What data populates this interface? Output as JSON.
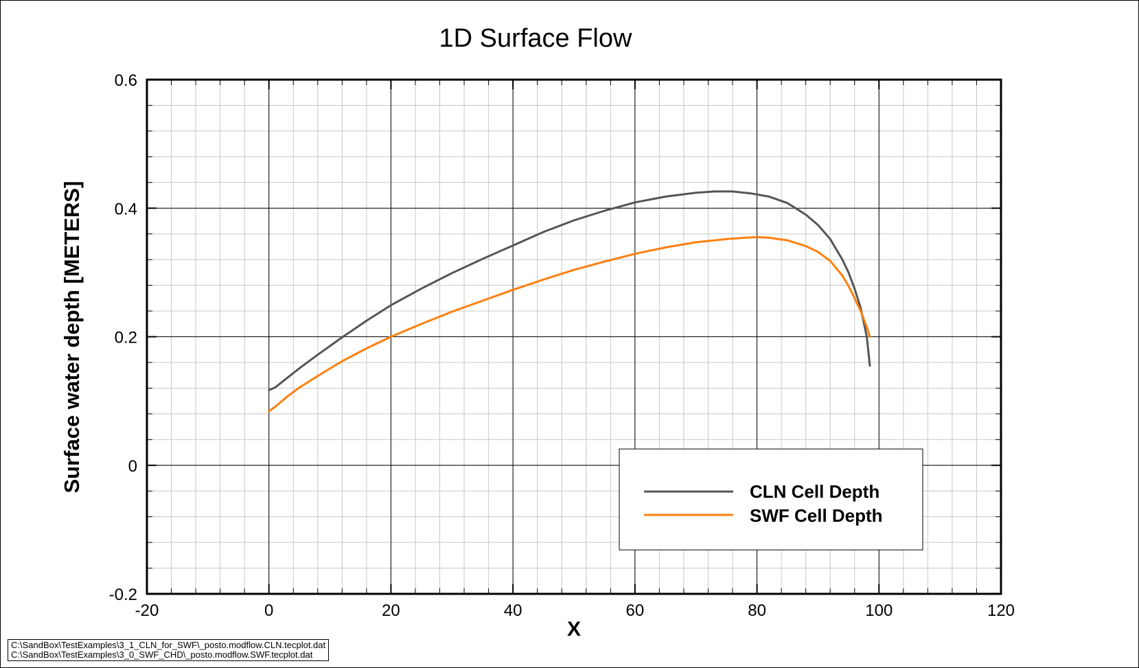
{
  "chart_data": {
    "type": "line",
    "title": "1D Surface Flow",
    "xlabel": "X",
    "ylabel": "Surface water depth [METERS]",
    "xlim": [
      -20,
      120
    ],
    "ylim": [
      -0.2,
      0.6
    ],
    "xticks": [
      "-20",
      "0",
      "20",
      "40",
      "60",
      "80",
      "100",
      "120"
    ],
    "yticks": [
      "-0.2",
      "0",
      "0.2",
      "0.4",
      "0.6"
    ],
    "grid": true,
    "legend_position": "lower-right",
    "series": [
      {
        "name": "CLN Cell Depth",
        "color": "#555555",
        "x": [
          0,
          1,
          3,
          5,
          8,
          12,
          16,
          20,
          25,
          30,
          35,
          40,
          45,
          50,
          55,
          60,
          65,
          70,
          73,
          76,
          79,
          82,
          85,
          88,
          90,
          92,
          94,
          95,
          96,
          97,
          98,
          98.5
        ],
        "y": [
          0.117,
          0.121,
          0.136,
          0.151,
          0.172,
          0.199,
          0.225,
          0.249,
          0.275,
          0.299,
          0.321,
          0.342,
          0.363,
          0.381,
          0.396,
          0.409,
          0.418,
          0.424,
          0.426,
          0.426,
          0.423,
          0.418,
          0.408,
          0.39,
          0.374,
          0.352,
          0.32,
          0.3,
          0.275,
          0.245,
          0.2,
          0.155
        ]
      },
      {
        "name": "SWF Cell Depth",
        "color": "#ff7f0e",
        "x": [
          0,
          1,
          3,
          5,
          8,
          12,
          16,
          20,
          25,
          30,
          35,
          40,
          45,
          50,
          55,
          60,
          65,
          70,
          75,
          78,
          80,
          82,
          85,
          88,
          90,
          92,
          94,
          95,
          96,
          97,
          98,
          98.5
        ],
        "y": [
          0.084,
          0.091,
          0.107,
          0.121,
          0.139,
          0.162,
          0.182,
          0.2,
          0.22,
          0.239,
          0.256,
          0.273,
          0.289,
          0.304,
          0.317,
          0.329,
          0.339,
          0.347,
          0.352,
          0.354,
          0.355,
          0.354,
          0.35,
          0.341,
          0.332,
          0.318,
          0.295,
          0.279,
          0.26,
          0.24,
          0.215,
          0.2
        ]
      }
    ]
  },
  "footer": {
    "file1": "C:\\SandBox\\TestExamples\\3_1_CLN_for_SWF\\_posto.modflow.CLN.tecplot.dat",
    "file2": "C:\\SandBox\\TestExamples\\3_0_SWF_CHD\\_posto.modflow.SWF.tecplot.dat"
  }
}
